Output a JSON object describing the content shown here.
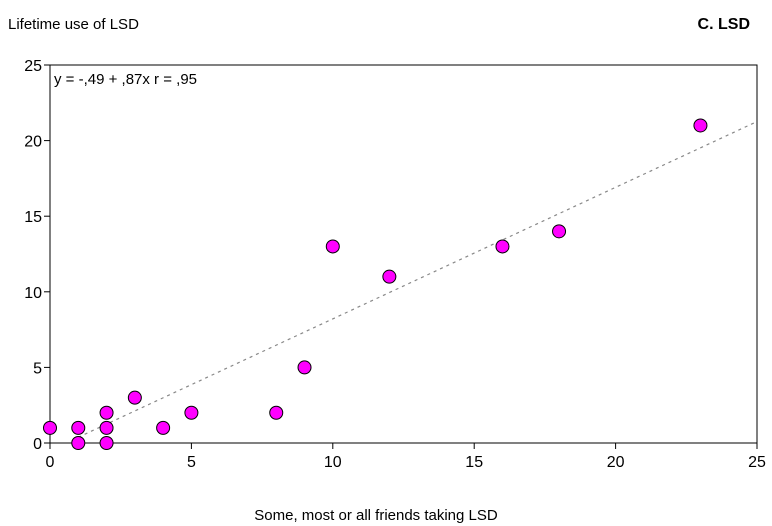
{
  "chart_data": {
    "type": "scatter",
    "title": "Lifetime use of LSD",
    "panel_label": "C. LSD",
    "xlabel": "Some, most or all friends taking LSD",
    "ylabel": "",
    "xlim": [
      0,
      25
    ],
    "ylim": [
      0,
      25
    ],
    "xticks": [
      "0",
      "5",
      "10",
      "15",
      "20",
      "25"
    ],
    "yticks": [
      "0",
      "5",
      "10",
      "15",
      "20",
      "25"
    ],
    "grid": false,
    "annotation": "y = -,49 + ,87x  r = ,95",
    "marker_color": "#ff00ff",
    "fit_line": {
      "intercept": -0.49,
      "slope": 0.87,
      "x_range": [
        1,
        25
      ],
      "style": "dotted",
      "color": "#888888"
    },
    "points": [
      {
        "x": 0,
        "y": 1
      },
      {
        "x": 1,
        "y": 1
      },
      {
        "x": 1,
        "y": 0
      },
      {
        "x": 2,
        "y": 2
      },
      {
        "x": 2,
        "y": 1
      },
      {
        "x": 2,
        "y": 0
      },
      {
        "x": 3,
        "y": 3
      },
      {
        "x": 4,
        "y": 1
      },
      {
        "x": 5,
        "y": 2
      },
      {
        "x": 8,
        "y": 2
      },
      {
        "x": 9,
        "y": 5
      },
      {
        "x": 10,
        "y": 13
      },
      {
        "x": 12,
        "y": 11
      },
      {
        "x": 16,
        "y": 13
      },
      {
        "x": 18,
        "y": 14
      },
      {
        "x": 23,
        "y": 21
      }
    ]
  }
}
